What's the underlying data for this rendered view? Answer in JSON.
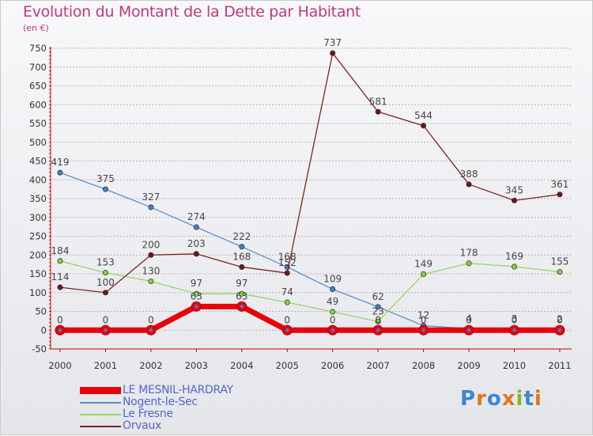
{
  "title": "Evolution du Montant de la Dette par Habitant",
  "subtitle": "(en €)",
  "logo_text": "Proxiti",
  "colors": {
    "title": "#c03a78",
    "legend_text": "#5566cc",
    "axis": "#cc0000",
    "grid": "#b8b8b8"
  },
  "chart_data": {
    "type": "line",
    "title": "Evolution du Montant de la Dette par Habitant",
    "subtitle": "(en €)",
    "x": [
      "2000",
      "2001",
      "2002",
      "2003",
      "2004",
      "2005",
      "2006",
      "2007",
      "2008",
      "2009",
      "2010",
      "2011"
    ],
    "ylim": [
      -50,
      750
    ],
    "yticks": [
      -50,
      0,
      50,
      100,
      150,
      200,
      250,
      300,
      350,
      400,
      450,
      500,
      550,
      600,
      650,
      700,
      750
    ],
    "grid": true,
    "legend_position": "bottom-left",
    "series": [
      {
        "name": "LE MESNIL-HARDRAY",
        "color": "#e8000b",
        "dot": "#e8000b",
        "width": 7,
        "values": [
          0,
          0,
          0,
          63,
          63,
          0,
          0,
          0,
          0,
          0,
          0,
          0
        ],
        "labels": [
          "0",
          "0",
          "0",
          "63",
          "63",
          "0",
          "0",
          "0",
          "0",
          "0",
          "0",
          "0"
        ]
      },
      {
        "name": "Nogent-le-Sec",
        "color": "#5b8fc9",
        "dot": "#3e7fc8",
        "width": 1.3,
        "values": [
          419,
          375,
          327,
          274,
          222,
          168,
          109,
          62,
          12,
          4,
          3,
          2
        ],
        "labels": [
          "419",
          "375",
          "327",
          "274",
          "222",
          "168",
          "109",
          "62",
          "12",
          "4",
          "3",
          "2"
        ]
      },
      {
        "name": "Le Fresne",
        "color": "#9ad46a",
        "dot": "#7ed23e",
        "width": 1.3,
        "values": [
          184,
          153,
          130,
          97,
          97,
          74,
          49,
          23,
          149,
          178,
          169,
          155
        ],
        "labels": [
          "184",
          "153",
          "130",
          "97",
          "97",
          "74",
          "49",
          "23",
          "149",
          "178",
          "169",
          "155"
        ]
      },
      {
        "name": "Orvaux",
        "color": "#7a2424",
        "dot": "#6b1818",
        "width": 1.3,
        "values": [
          114,
          100,
          200,
          203,
          168,
          152,
          737,
          581,
          544,
          388,
          345,
          361
        ],
        "labels": [
          "114",
          "100",
          "200",
          "203",
          "168",
          "152",
          "737",
          "581",
          "544",
          "388",
          "345",
          "361"
        ]
      }
    ]
  }
}
